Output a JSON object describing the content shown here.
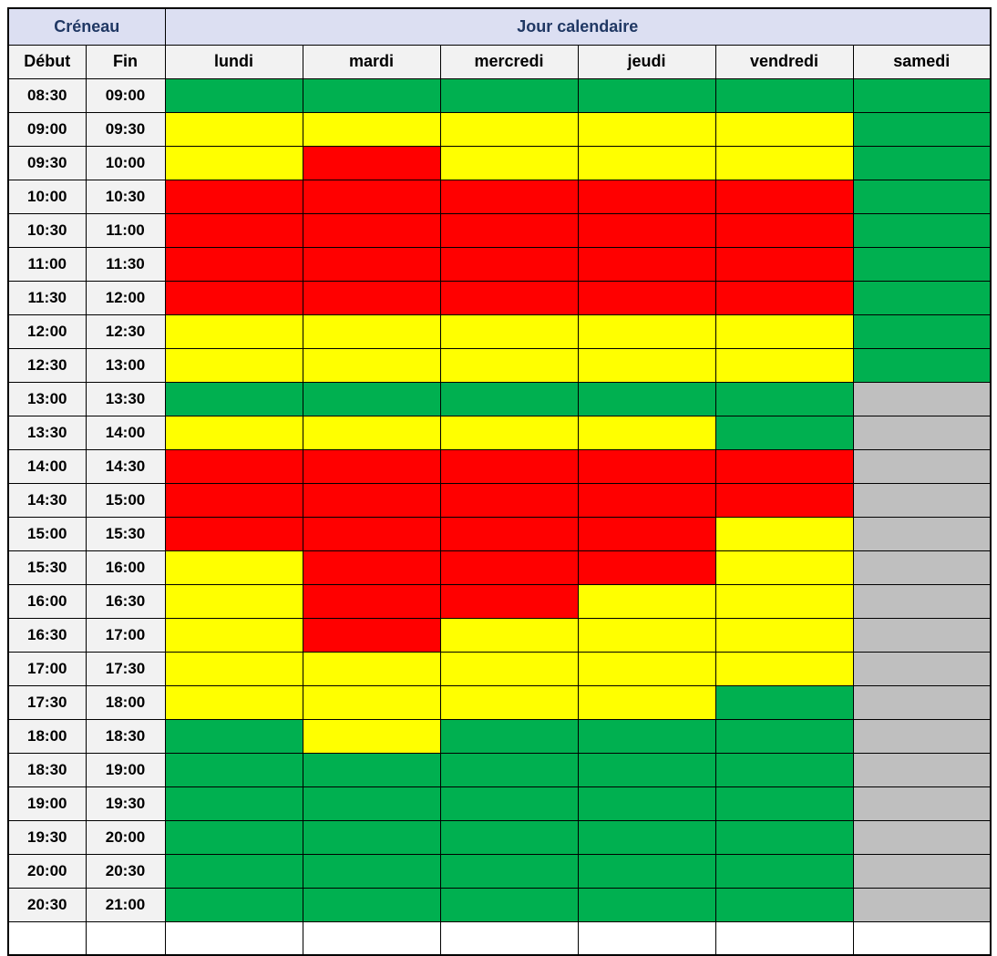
{
  "table": {
    "creneau_header": "Créneau",
    "jour_header": "Jour calendaire",
    "debut_label": "Début",
    "fin_label": "Fin",
    "days": [
      "lundi",
      "mardi",
      "mercredi",
      "jeudi",
      "vendredi",
      "samedi"
    ],
    "colors": {
      "green": "#00B050",
      "yellow": "#FFFF00",
      "red": "#FF0000",
      "gray": "#BFBFBF",
      "header_bg": "#DCDFF2",
      "header_text": "#203864",
      "subheader_bg": "#F2F2F2",
      "border": "#000000"
    },
    "rows": [
      {
        "debut": "08:30",
        "fin": "09:00",
        "cells": [
          "green",
          "green",
          "green",
          "green",
          "green",
          "green"
        ]
      },
      {
        "debut": "09:00",
        "fin": "09:30",
        "cells": [
          "yellow",
          "yellow",
          "yellow",
          "yellow",
          "yellow",
          "green"
        ]
      },
      {
        "debut": "09:30",
        "fin": "10:00",
        "cells": [
          "yellow",
          "red",
          "yellow",
          "yellow",
          "yellow",
          "green"
        ]
      },
      {
        "debut": "10:00",
        "fin": "10:30",
        "cells": [
          "red",
          "red",
          "red",
          "red",
          "red",
          "green"
        ]
      },
      {
        "debut": "10:30",
        "fin": "11:00",
        "cells": [
          "red",
          "red",
          "red",
          "red",
          "red",
          "green"
        ]
      },
      {
        "debut": "11:00",
        "fin": "11:30",
        "cells": [
          "red",
          "red",
          "red",
          "red",
          "red",
          "green"
        ]
      },
      {
        "debut": "11:30",
        "fin": "12:00",
        "cells": [
          "red",
          "red",
          "red",
          "red",
          "red",
          "green"
        ]
      },
      {
        "debut": "12:00",
        "fin": "12:30",
        "cells": [
          "yellow",
          "yellow",
          "yellow",
          "yellow",
          "yellow",
          "green"
        ]
      },
      {
        "debut": "12:30",
        "fin": "13:00",
        "cells": [
          "yellow",
          "yellow",
          "yellow",
          "yellow",
          "yellow",
          "green"
        ]
      },
      {
        "debut": "13:00",
        "fin": "13:30",
        "cells": [
          "green",
          "green",
          "green",
          "green",
          "green",
          "gray"
        ]
      },
      {
        "debut": "13:30",
        "fin": "14:00",
        "cells": [
          "yellow",
          "yellow",
          "yellow",
          "yellow",
          "green",
          "gray"
        ]
      },
      {
        "debut": "14:00",
        "fin": "14:30",
        "cells": [
          "red",
          "red",
          "red",
          "red",
          "red",
          "gray"
        ]
      },
      {
        "debut": "14:30",
        "fin": "15:00",
        "cells": [
          "red",
          "red",
          "red",
          "red",
          "red",
          "gray"
        ]
      },
      {
        "debut": "15:00",
        "fin": "15:30",
        "cells": [
          "red",
          "red",
          "red",
          "red",
          "yellow",
          "gray"
        ]
      },
      {
        "debut": "15:30",
        "fin": "16:00",
        "cells": [
          "yellow",
          "red",
          "red",
          "red",
          "yellow",
          "gray"
        ]
      },
      {
        "debut": "16:00",
        "fin": "16:30",
        "cells": [
          "yellow",
          "red",
          "red",
          "yellow",
          "yellow",
          "gray"
        ]
      },
      {
        "debut": "16:30",
        "fin": "17:00",
        "cells": [
          "yellow",
          "red",
          "yellow",
          "yellow",
          "yellow",
          "gray"
        ]
      },
      {
        "debut": "17:00",
        "fin": "17:30",
        "cells": [
          "yellow",
          "yellow",
          "yellow",
          "yellow",
          "yellow",
          "gray"
        ]
      },
      {
        "debut": "17:30",
        "fin": "18:00",
        "cells": [
          "yellow",
          "yellow",
          "yellow",
          "yellow",
          "green",
          "gray"
        ]
      },
      {
        "debut": "18:00",
        "fin": "18:30",
        "cells": [
          "green",
          "yellow",
          "green",
          "green",
          "green",
          "gray"
        ]
      },
      {
        "debut": "18:30",
        "fin": "19:00",
        "cells": [
          "green",
          "green",
          "green",
          "green",
          "green",
          "gray"
        ]
      },
      {
        "debut": "19:00",
        "fin": "19:30",
        "cells": [
          "green",
          "green",
          "green",
          "green",
          "green",
          "gray"
        ]
      },
      {
        "debut": "19:30",
        "fin": "20:00",
        "cells": [
          "green",
          "green",
          "green",
          "green",
          "green",
          "gray"
        ]
      },
      {
        "debut": "20:00",
        "fin": "20:30",
        "cells": [
          "green",
          "green",
          "green",
          "green",
          "green",
          "gray"
        ]
      },
      {
        "debut": "20:30",
        "fin": "21:00",
        "cells": [
          "green",
          "green",
          "green",
          "green",
          "green",
          "gray"
        ]
      }
    ]
  }
}
